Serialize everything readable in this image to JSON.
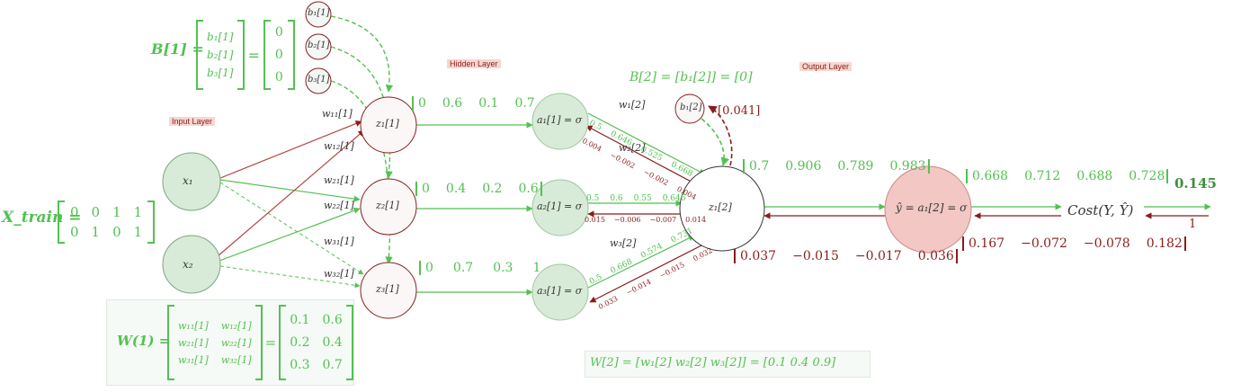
{
  "layers": {
    "input": "Input Layer",
    "hidden": "Hidden Layer",
    "output": "Output Layer"
  },
  "nodes": {
    "x1": "x₁",
    "x2": "x₂",
    "z1": "z₁[1]",
    "z2": "z₂[1]",
    "z3": "z₃[1]",
    "a1": "a₁[1] = σ",
    "a2": "a₂[1] = σ",
    "a3": "a₃[1] = σ",
    "b1": "b₁[1]",
    "b2": "b₂[1]",
    "b3": "b₃[1]",
    "b_out": "b₁[2]",
    "z_out": "z₁[2]",
    "y_hat": "ŷ = a₁[2] = σ",
    "cost": "Cost(Y, Ŷ)"
  },
  "weight_labels": {
    "w11": "w₁₁[1]",
    "w12": "w₁₂[1]",
    "w21": "w₂₁[1]",
    "w22": "w₂₂[1]",
    "w31": "w₃₁[1]",
    "w32": "w₃₂[1]",
    "w1_2": "w₁[2]",
    "w2_2": "w₂[2]",
    "w3_2": "w₃[2]"
  },
  "matrices": {
    "xtrain_name": "X_train =",
    "xtrain_rows": [
      [
        "0",
        "0",
        "1",
        "1"
      ],
      [
        "0",
        "1",
        "0",
        "1"
      ]
    ],
    "b1_name": "B[1] =",
    "b1_symbols": [
      "b₁[1]",
      "b₂[1]",
      "b₃[1]"
    ],
    "b1_values": [
      "0",
      "0",
      "0"
    ],
    "b2_eq": "B[2] = [b₁[2]] = [0]",
    "w1_name": "W(1) =",
    "w1_symbols": [
      [
        "w₁₁[1]",
        "w₁₂[1]"
      ],
      [
        "w₂₁[1]",
        "w₂₂[1]"
      ],
      [
        "w₃₁[1]",
        "w₃₂[1]"
      ]
    ],
    "w1_values": [
      [
        "0.1",
        "0.6"
      ],
      [
        "0.2",
        "0.4"
      ],
      [
        "0.3",
        "0.7"
      ]
    ],
    "w2_eq": "W[2] = [w₁[2]  w₂[2]  w₃[2]] = [0.1  0.4  0.9]"
  },
  "forward": {
    "z1_vals": [
      "0",
      "0.6",
      "0.1",
      "0.7"
    ],
    "z2_vals": [
      "0",
      "0.4",
      "0.2",
      "0.6"
    ],
    "z3_vals": [
      "0",
      "0.7",
      "0.3",
      "1"
    ],
    "zout_vals": [
      "0.7",
      "0.906",
      "0.789",
      "0.983"
    ],
    "yhat_vals": [
      "0.668",
      "0.712",
      "0.688",
      "0.728"
    ],
    "a1_edge": [
      "0.5",
      "0.646",
      "0.525",
      "0.668"
    ],
    "a2_edge": [
      "0.5",
      "0.6",
      "0.55",
      "0.646"
    ],
    "a3_edge": [
      "0.5",
      "0.668",
      "0.574",
      "0.731"
    ],
    "cost_value": "0.145"
  },
  "backward": {
    "b_out_grad": "[0.041]",
    "zout_grad": [
      "0.037",
      "−0.015",
      "−0.017",
      "0.036"
    ],
    "yhat_grad": [
      "0.167",
      "−0.072",
      "−0.078",
      "0.182"
    ],
    "a1_edge": [
      "0.004",
      "−0.002",
      "−0.002",
      "0.004"
    ],
    "a2_edge": [
      "0.015",
      "−0.006",
      "−0.007",
      "0.014"
    ],
    "a3_edge": [
      "0.033",
      "−0.014",
      "−0.015",
      "0.032"
    ],
    "cost_grad": "1"
  },
  "colors": {
    "forward": "#52c152",
    "backward": "#8a1c1c",
    "node_fill": "#d8ebd8",
    "output_fill": "#f2c7c4"
  }
}
